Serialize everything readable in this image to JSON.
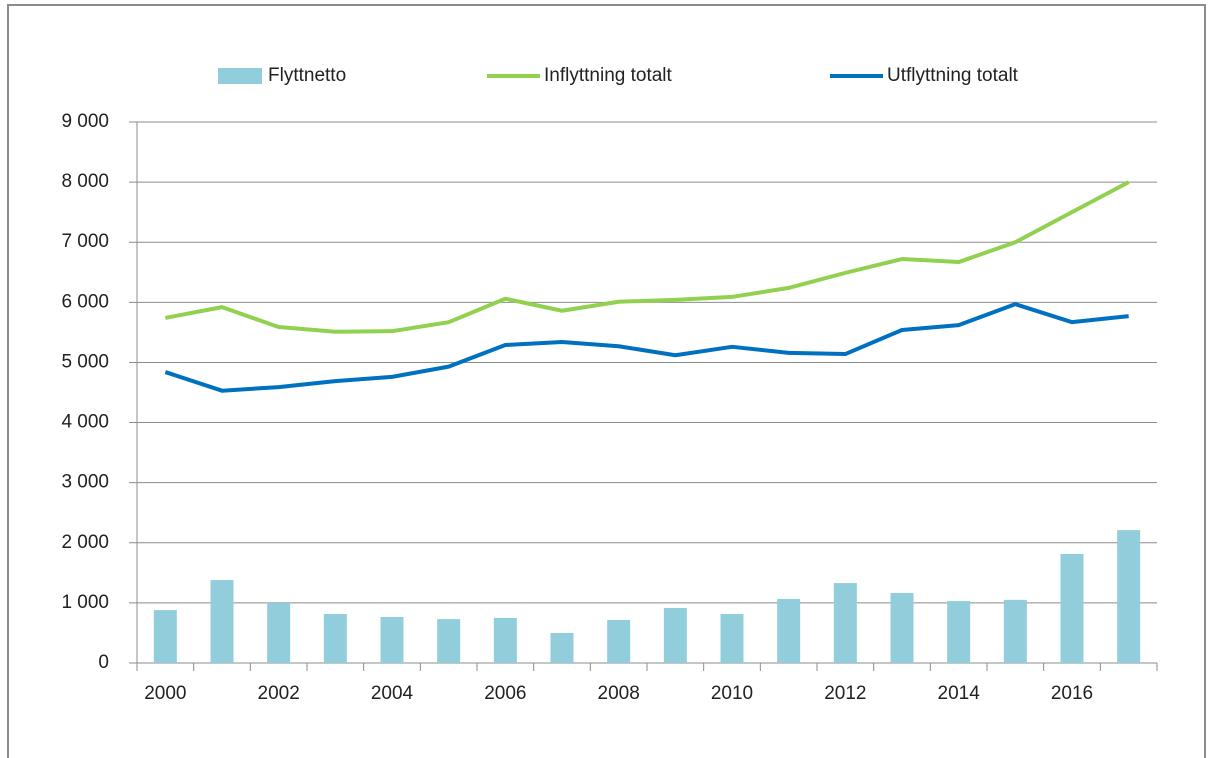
{
  "chart_data": {
    "type": "bar-line",
    "categories": [
      "2000",
      null,
      "2002",
      null,
      "2004",
      null,
      "2006",
      null,
      "2008",
      null,
      "2010",
      null,
      "2012",
      null,
      "2014",
      null,
      "2016",
      null
    ],
    "series": [
      {
        "name": "Flyttnetto",
        "type": "bar",
        "color": "#92cddc",
        "values": [
          880,
          1380,
          1000,
          815,
          765,
          730,
          750,
          500,
          715,
          915,
          815,
          1065,
          1330,
          1165,
          1030,
          1050,
          1815,
          2210
        ]
      },
      {
        "name": "Inflyttning totalt",
        "type": "line",
        "color": "#92d050",
        "values": [
          5740,
          5920,
          5590,
          5510,
          5520,
          5670,
          6060,
          5860,
          6010,
          6040,
          6090,
          6240,
          6490,
          6720,
          6670,
          7000,
          7500,
          8000
        ]
      },
      {
        "name": "Utflyttning totalt",
        "type": "line",
        "color": "#0070c0",
        "values": [
          4840,
          4530,
          4590,
          4690,
          4760,
          4930,
          5290,
          5340,
          5270,
          5120,
          5260,
          5160,
          5140,
          5540,
          5620,
          5970,
          5670,
          5770
        ]
      }
    ],
    "ylim": [
      0,
      9000
    ],
    "yticks": [
      0,
      {
        "value": 1000,
        "label": "1 000"
      },
      {
        "value": 2000,
        "label": "2 000"
      },
      {
        "value": 3000,
        "label": "3 000"
      },
      {
        "value": 4000,
        "label": "4 000"
      },
      {
        "value": 5000,
        "label": "5 000"
      },
      {
        "value": 6000,
        "label": "6 000"
      },
      {
        "value": 7000,
        "label": "7 000"
      },
      {
        "value": 8000,
        "label": "8 000"
      },
      {
        "value": 9000,
        "label": "9 000"
      }
    ],
    "grid": true,
    "legend": "top"
  }
}
